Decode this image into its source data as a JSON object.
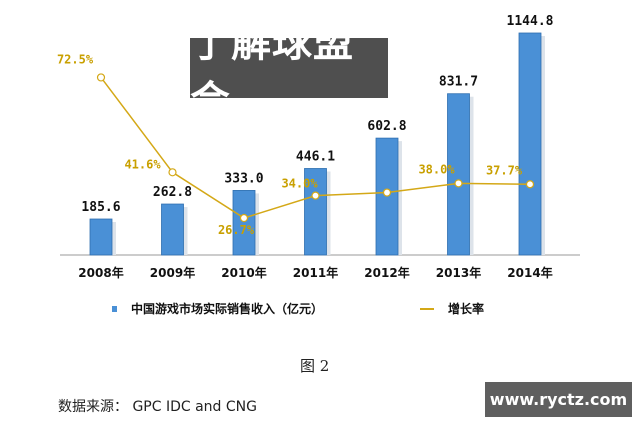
{
  "chart_data": {
    "type": "bar+line",
    "categories": [
      "2008年",
      "2009年",
      "2010年",
      "2011年",
      "2012年",
      "2013年",
      "2014年"
    ],
    "series": [
      {
        "name": "中国游戏市场实际销售收入（亿元）",
        "type": "bar",
        "values": [
          185.6,
          262.8,
          333.0,
          446.1,
          602.8,
          831.7,
          1144.8
        ],
        "labels": [
          "185.6",
          "262.8",
          "333.0",
          "446.1",
          "602.8",
          "831.7",
          "1144.8"
        ],
        "color": "#4a90d6"
      },
      {
        "name": "增长率",
        "type": "line",
        "values": [
          72.5,
          41.6,
          26.7,
          34.0,
          35.0,
          38.0,
          37.7
        ],
        "labels": [
          "72.5%",
          "41.6%",
          "26.7%",
          "34.0%",
          "",
          "38.0%",
          "37.7%"
        ],
        "color": "#d4a817"
      }
    ],
    "legend_position": "bottom",
    "grid": false
  },
  "caption": "图 2",
  "source": "数据来源： GPC IDC and CNG",
  "overlay_text": "了解球盟会",
  "watermark": "www.ryctz.com"
}
